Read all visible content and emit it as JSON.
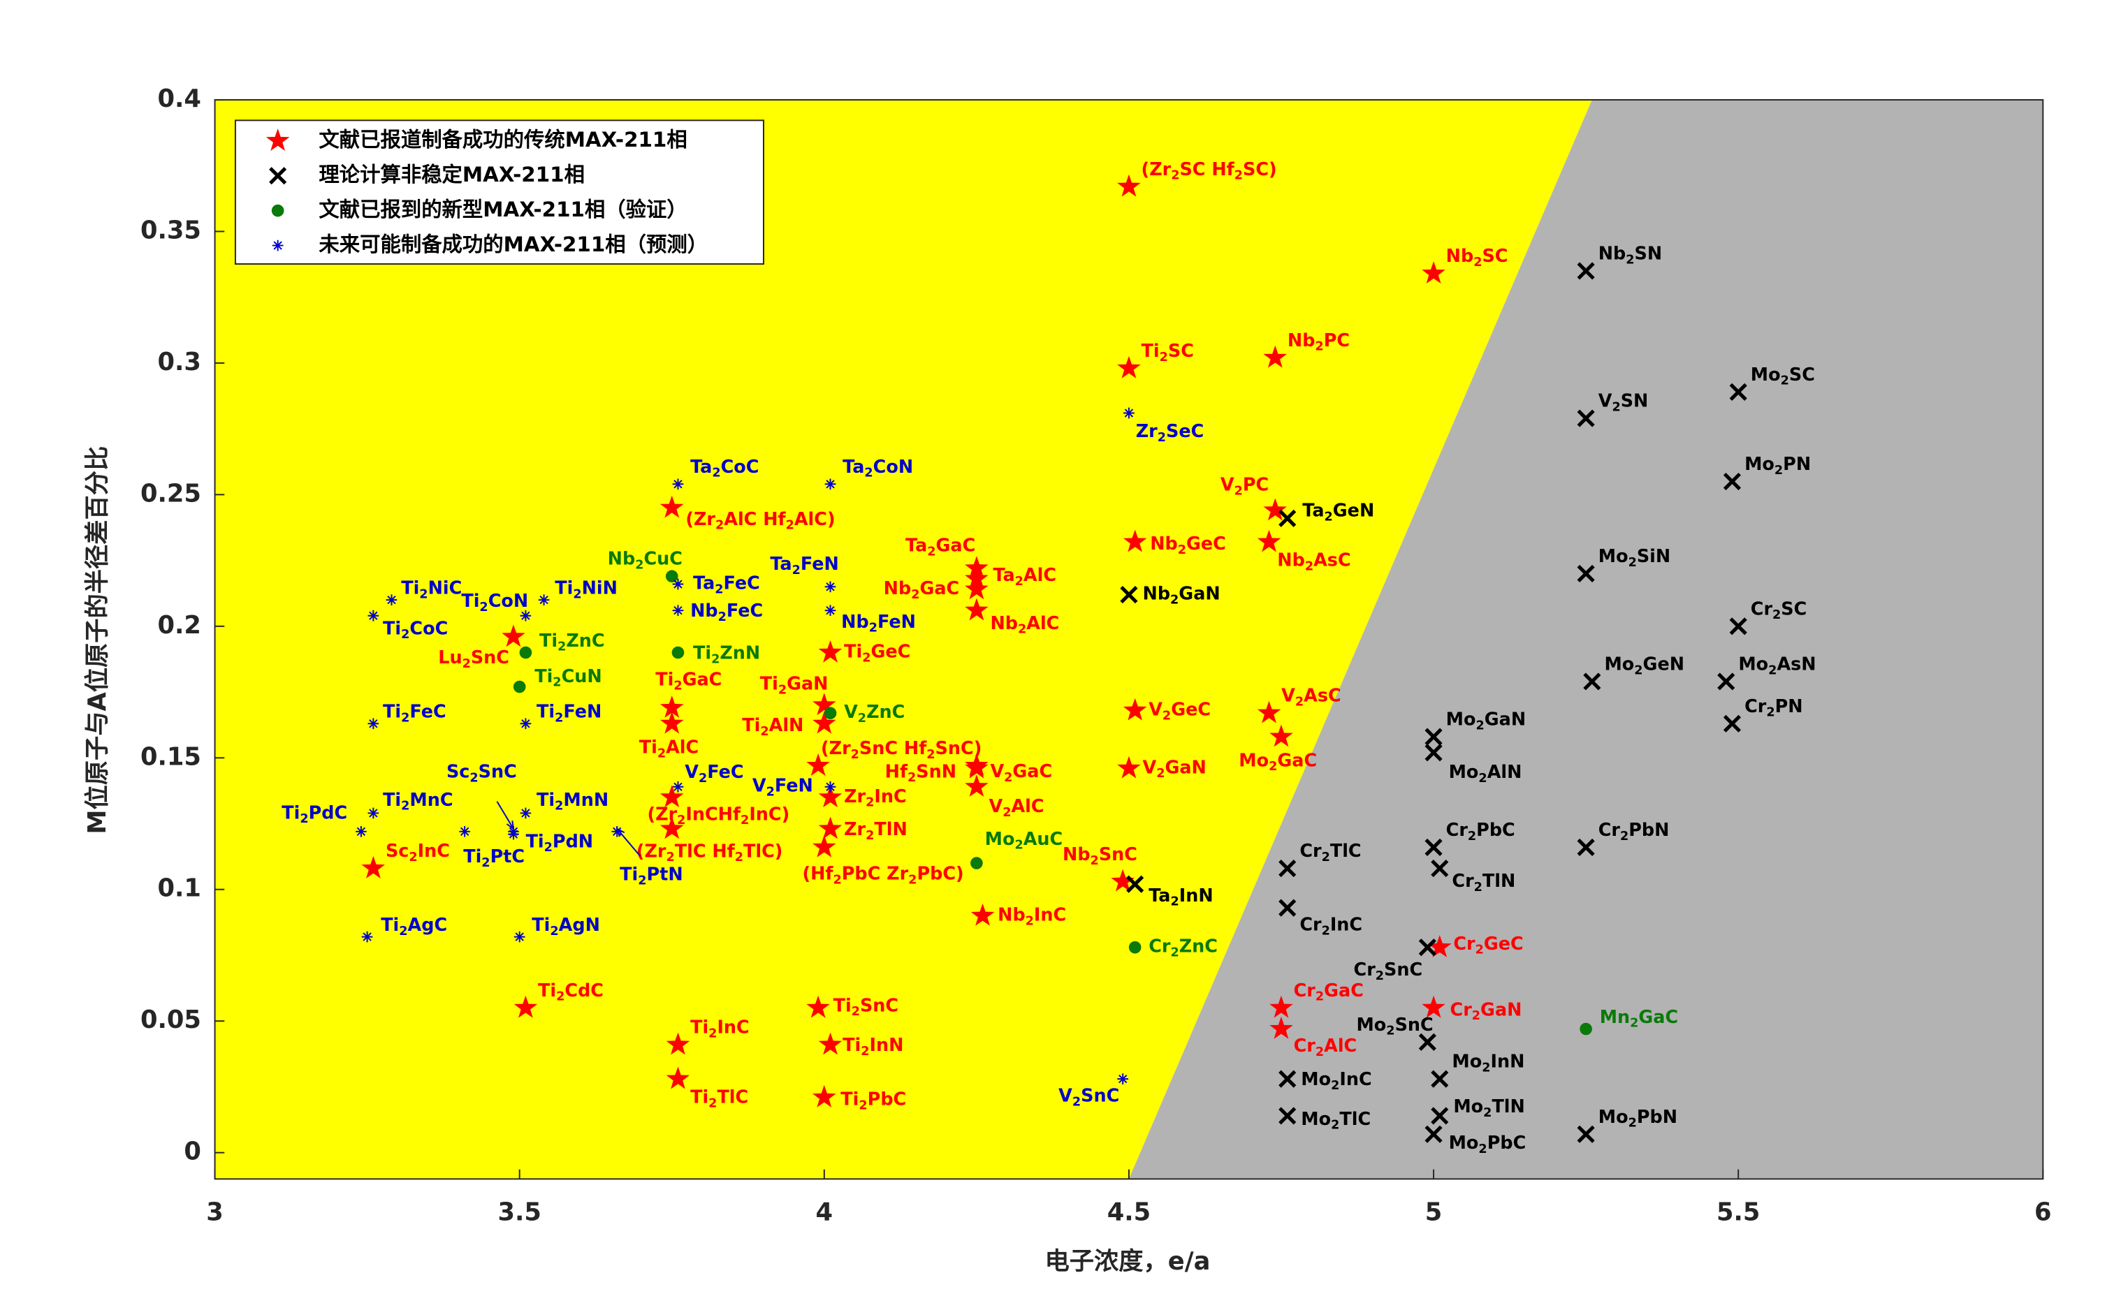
{
  "chart_data": {
    "type": "scatter",
    "x_label": "电子浓度，e/a",
    "y_label": "M位原子与A位原子的半径差百分比",
    "xlim": [
      3,
      6
    ],
    "ylim": [
      -0.01,
      0.4
    ],
    "xticks": [
      3,
      3.5,
      4,
      4.5,
      5,
      5.5,
      6
    ],
    "yticks": [
      0,
      0.05,
      0.1,
      0.15,
      0.2,
      0.25,
      0.3,
      0.35,
      0.4
    ],
    "legend_position": "upper left",
    "regions": [
      {
        "color": "#ffff00",
        "x": [
          3,
          4.5,
          5.26,
          3
        ],
        "y": [
          -0.01,
          -0.01,
          0.4,
          0.4
        ]
      },
      {
        "color": "#b3b3b3",
        "x": [
          4.5,
          6,
          6,
          5.26
        ],
        "y": [
          -0.01,
          -0.01,
          0.4,
          0.4
        ]
      }
    ],
    "series": [
      {
        "name": "文献已报道制备成功的传统MAX-211相",
        "color": "#ff0000",
        "marker": "star",
        "x": [
          4.5,
          5.0,
          4.5,
          4.74,
          3.75,
          4.74,
          4.51,
          4.73,
          4.25,
          4.25,
          4.25,
          4.25,
          3.49,
          4.01,
          3.75,
          4.0,
          3.75,
          4.0,
          4.51,
          4.73,
          4.75,
          3.99,
          4.25,
          4.25,
          4.25,
          4.5,
          3.75,
          4.01,
          3.75,
          4.01,
          4.0,
          3.26,
          4.49,
          4.26,
          5.01,
          3.51,
          3.99,
          4.75,
          5.0,
          4.75,
          3.76,
          4.01,
          3.76,
          4.0
        ],
        "values": [
          0.367,
          0.334,
          0.298,
          0.302,
          0.245,
          0.244,
          0.232,
          0.232,
          0.222,
          0.218,
          0.214,
          0.206,
          0.196,
          0.19,
          0.169,
          0.17,
          0.163,
          0.163,
          0.168,
          0.167,
          0.158,
          0.147,
          0.147,
          0.146,
          0.139,
          0.146,
          0.135,
          0.135,
          0.123,
          0.123,
          0.116,
          0.108,
          0.103,
          0.09,
          0.078,
          0.055,
          0.055,
          0.055,
          0.055,
          0.047,
          0.041,
          0.041,
          0.028,
          0.021
        ],
        "labels": [
          "(Zr2SC Hf2SC)",
          "Nb2SC",
          "Ti2SC",
          "Nb2PC",
          "(Zr2AlC Hf2AlC)",
          "V2PC",
          "Nb2GeC",
          "Nb2AsC",
          "Ta2GaC",
          "Ta2AlC",
          "Nb2GaC",
          "Nb2AlC",
          "Lu2SnC",
          "Ti2GeC",
          "Ti2GaC",
          "Ti2GaN",
          "Ti2AlC",
          "Ti2AlN",
          "V2GeC",
          "V2AsC",
          "Mo2GaC",
          "(Zr2SnC Hf2SnC)",
          "Hf2SnN",
          "V2GaC",
          "V2AlC",
          "V2GaN",
          "(Zr2InCHf2InC)",
          "Zr2InC",
          "(Zr2TlC Hf2TlC)",
          "Zr2TlN",
          "(Hf2PbC Zr2PbC)",
          "Sc2InC",
          "Nb2SnC",
          "Nb2InC",
          "Cr2GeC",
          "Ti2CdC",
          "Ti2SnC",
          "Cr2GaC",
          "Cr2GaN",
          "Cr2AlC",
          "Ti2InC",
          "Ti2InN",
          "Ti2TlC",
          "Ti2PbC"
        ]
      },
      {
        "name": "理论计算非稳定MAX-211相",
        "color": "#000000",
        "marker": "x",
        "x": [
          5.25,
          5.25,
          5.5,
          5.49,
          4.76,
          4.5,
          5.25,
          5.5,
          5.26,
          5.48,
          5.49,
          5.0,
          5.0,
          5.0,
          5.25,
          4.76,
          5.01,
          4.51,
          4.76,
          4.99,
          4.99,
          5.01,
          4.76,
          4.76,
          5.01,
          5.0,
          5.25
        ],
        "values": [
          0.335,
          0.279,
          0.289,
          0.255,
          0.241,
          0.212,
          0.22,
          0.2,
          0.179,
          0.179,
          0.163,
          0.158,
          0.152,
          0.116,
          0.116,
          0.108,
          0.108,
          0.102,
          0.093,
          0.078,
          0.042,
          0.028,
          0.028,
          0.014,
          0.014,
          0.007,
          0.007
        ],
        "labels": [
          "Nb2SN",
          "V2SN",
          "Mo2SC",
          "Mo2PN",
          "Ta2GeN",
          "Nb2GaN",
          "Mo2SiN",
          "Cr2SC",
          "Mo2GeN",
          "Mo2AsN",
          "Cr2PN",
          "Mo2GaN",
          "Mo2AlN",
          "Cr2PbC",
          "Cr2PbN",
          "Cr2TlC",
          "Cr2TlN",
          "Ta2InN",
          "Cr2InC",
          "Cr2SnC",
          "Mo2SnC",
          "Mo2InN",
          "Mo2InC",
          "Mo2TlC",
          "Mo2TlN",
          "Mo2PbC",
          "Mo2PbN"
        ]
      },
      {
        "name": "文献已报到的新型MAX-211相（验证）",
        "color": "#0a7a0a",
        "marker": "circle",
        "x": [
          3.75,
          3.51,
          3.76,
          3.5,
          4.01,
          4.25,
          4.51,
          5.25
        ],
        "values": [
          0.219,
          0.19,
          0.19,
          0.177,
          0.167,
          0.11,
          0.078,
          0.047
        ],
        "labels": [
          "Nb2CuC",
          "Ti2ZnC",
          "Ti2ZnN",
          "Ti2CuN",
          "V2ZnC",
          "Mo2AuC",
          "Cr2ZnC",
          "Mn2GaC"
        ]
      },
      {
        "name": "未来可能制备成功的MAX-211相（预测）",
        "color": "#0000cc",
        "marker": "asterisk",
        "x": [
          4.5,
          3.76,
          4.01,
          4.01,
          3.76,
          3.76,
          4.01,
          3.29,
          3.51,
          3.54,
          3.26,
          3.26,
          3.51,
          3.76,
          4.01,
          3.26,
          3.24,
          3.51,
          3.49,
          3.41,
          3.49,
          3.66,
          3.25,
          3.5,
          4.49
        ],
        "values": [
          0.281,
          0.254,
          0.254,
          0.215,
          0.216,
          0.206,
          0.206,
          0.21,
          0.204,
          0.21,
          0.204,
          0.163,
          0.163,
          0.139,
          0.139,
          0.129,
          0.122,
          0.129,
          0.122,
          0.122,
          0.121,
          0.122,
          0.082,
          0.082,
          0.028
        ],
        "labels": [
          "Zr2SeC",
          "Ta2CoC",
          "Ta2CoN",
          "Ta2FeN",
          "Ta2FeC",
          "Nb2FeC",
          "Nb2FeN",
          "Ti2NiC",
          "Ti2CoN",
          "Ti2NiN",
          "Ti2CoC",
          "Ti2FeC",
          "Ti2FeN",
          "V2FeC",
          "V2FeN",
          "Ti2MnC",
          "Ti2PdC",
          "Ti2MnN",
          "Sc2SnC",
          "Ti2PtC",
          "Ti2PdN",
          "Ti2PtN",
          "Ti2AgC",
          "Ti2AgN",
          "V2SnC"
        ]
      }
    ]
  }
}
